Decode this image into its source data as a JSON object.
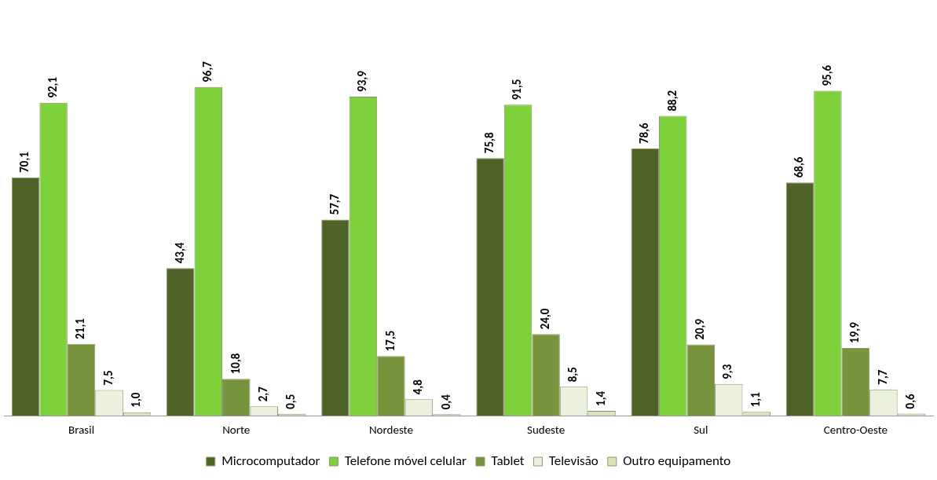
{
  "chart_data": {
    "type": "bar",
    "categories": [
      "Brasil",
      "Norte",
      "Nordeste",
      "Sudeste",
      "Sul",
      "Centro-Oeste"
    ],
    "series": [
      {
        "name": "Microcomputador",
        "color": "#4f6228",
        "values": [
          70.1,
          43.4,
          57.7,
          75.8,
          78.6,
          68.6
        ],
        "value_labels": [
          "70,1",
          "43,4",
          "57,7",
          "75,8",
          "78,6",
          "68,6"
        ]
      },
      {
        "name": "Telefone móvel celular",
        "color": "#7fd13b",
        "values": [
          92.1,
          96.7,
          93.9,
          91.5,
          88.2,
          95.6
        ],
        "value_labels": [
          "92,1",
          "96,7",
          "93,9",
          "91,5",
          "88,2",
          "95,6"
        ]
      },
      {
        "name": "Tablet",
        "color": "#77933c",
        "values": [
          21.1,
          10.8,
          17.5,
          24.0,
          20.9,
          19.9
        ],
        "value_labels": [
          "21,1",
          "10,8",
          "17,5",
          "24,0",
          "20,9",
          "19,9"
        ]
      },
      {
        "name": "Televisão",
        "color": "#ebf1de",
        "values": [
          7.5,
          2.7,
          4.8,
          8.5,
          9.3,
          7.7
        ],
        "value_labels": [
          "7,5",
          "2,7",
          "4,8",
          "8,5",
          "9,3",
          "7,7"
        ]
      },
      {
        "name": "Outro equipamento",
        "color": "#d7e4bd",
        "values": [
          1.0,
          0.5,
          0.4,
          1.4,
          1.1,
          0.6
        ],
        "value_labels": [
          "1,0",
          "0,5",
          "0,4",
          "1,4",
          "1,1",
          "0,6"
        ]
      }
    ],
    "grid": false,
    "legend": "bottom"
  }
}
